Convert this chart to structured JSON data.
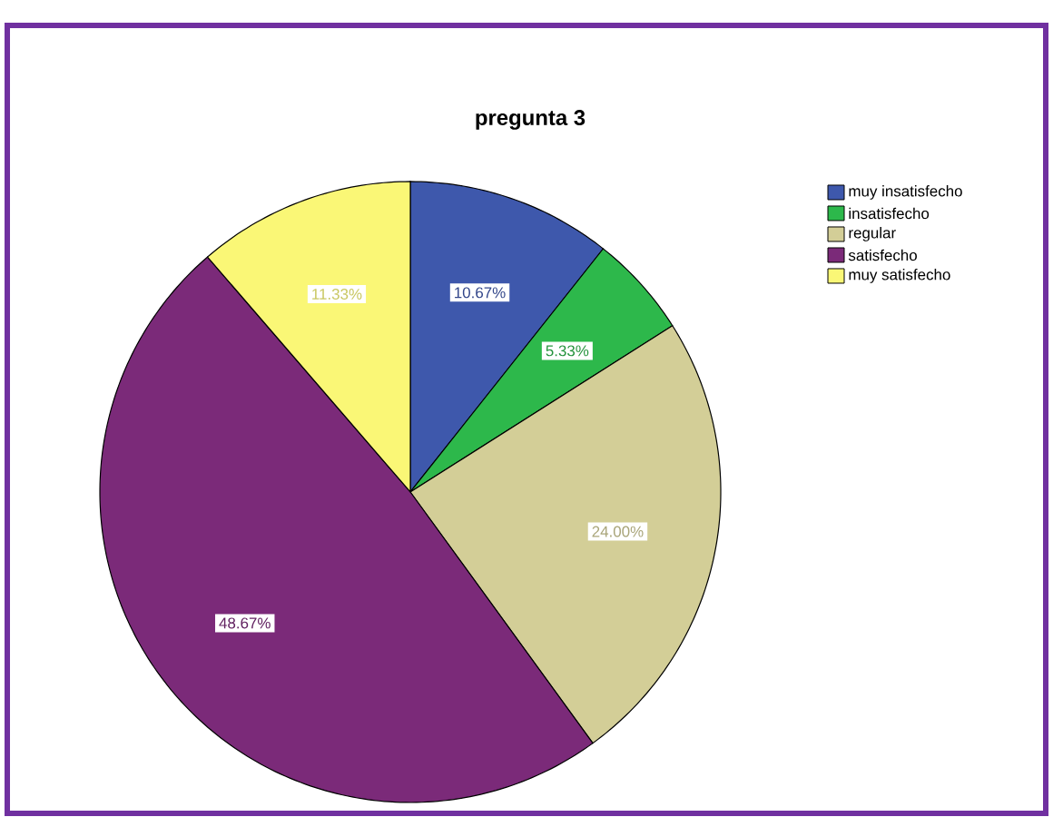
{
  "chart_data": {
    "type": "pie",
    "title": "pregunta 3",
    "categories": [
      "muy insatisfecho",
      "insatisfecho",
      "regular",
      "satisfecho",
      "muy satisfecho"
    ],
    "values": [
      10.67,
      5.33,
      24.0,
      48.67,
      11.33
    ],
    "colors": [
      "#3e58ac",
      "#2db84b",
      "#d3ce97",
      "#7b2a79",
      "#faf776"
    ],
    "value_labels": [
      "10.67%",
      "5.33%",
      "24.00%",
      "48.67%",
      "11.33%"
    ],
    "legend": "top right"
  }
}
